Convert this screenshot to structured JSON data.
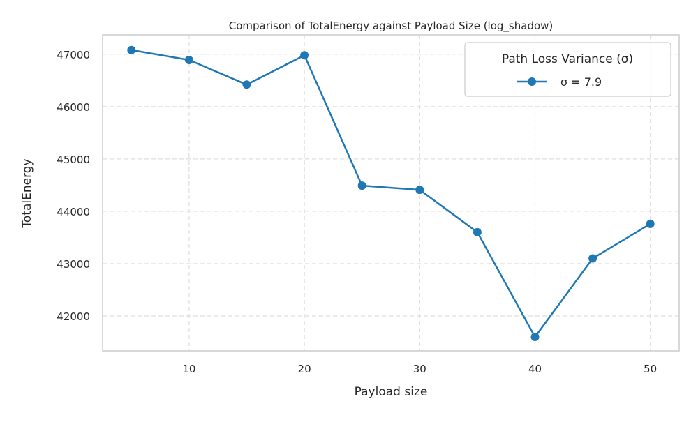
{
  "chart_data": {
    "type": "line",
    "title": "Comparison of TotalEnergy against Payload Size (log_shadow)",
    "xlabel": "Payload size",
    "ylabel": "TotalEnergy",
    "x_ticks": [
      10,
      20,
      30,
      40,
      50
    ],
    "y_ticks": [
      42000,
      43000,
      44000,
      45000,
      46000,
      47000
    ],
    "grid": true,
    "legend_position": "top-right",
    "legend_title": "Path Loss Variance (σ)",
    "series": [
      {
        "name": "σ = 7.9",
        "color": "#1f77b4",
        "x": [
          5,
          10,
          15,
          20,
          25,
          30,
          35,
          40,
          45,
          50
        ],
        "y": [
          47080,
          46890,
          46420,
          46980,
          44490,
          44410,
          43600,
          41600,
          43100,
          43760
        ]
      }
    ]
  }
}
